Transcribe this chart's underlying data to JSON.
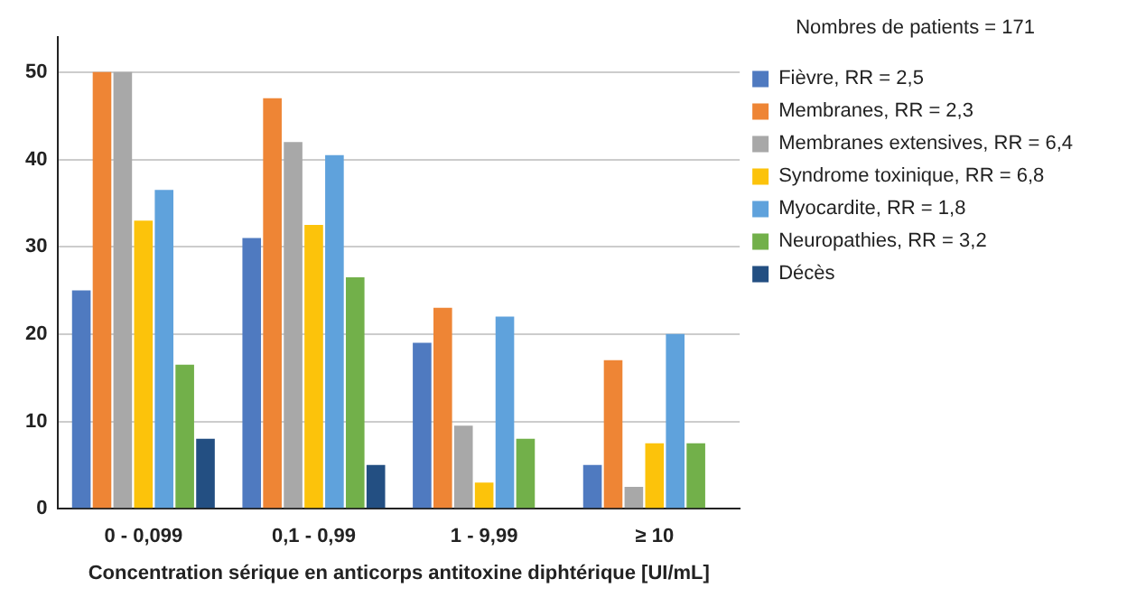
{
  "chart_data": {
    "type": "bar",
    "legend_title": "Nombres de patients = 171",
    "xlabel": "Concentration sérique en anticorps antitoxine diphtérique [UI/mL]",
    "categories": [
      "0 - 0,099",
      "0,1 - 0,99",
      "1 - 9,99",
      "≥ 10"
    ],
    "series": [
      {
        "name": "Fièvre, RR = 2,5",
        "color": "#4f7ac0",
        "values": [
          25,
          31,
          19,
          5
        ]
      },
      {
        "name": "Membranes, RR = 2,3",
        "color": "#ee8535",
        "values": [
          50,
          47,
          23,
          17
        ]
      },
      {
        "name": "Membranes extensives, RR = 6,4",
        "color": "#a8a8a8",
        "values": [
          50,
          42,
          9.5,
          2.5
        ]
      },
      {
        "name": "Syndrome toxinique, RR = 6,8",
        "color": "#fcc30b",
        "values": [
          33,
          32.5,
          3,
          7.5
        ]
      },
      {
        "name": "Myocardite, RR = 1,8",
        "color": "#5fa2dc",
        "values": [
          36.5,
          40.5,
          22,
          20
        ]
      },
      {
        "name": "Neuropathies, RR = 3,2",
        "color": "#72b04a",
        "values": [
          16.5,
          26.5,
          8,
          7.5
        ]
      },
      {
        "name": "Décès",
        "color": "#234f82",
        "values": [
          8,
          5,
          0,
          0
        ]
      }
    ],
    "ylim": [
      0,
      54
    ],
    "yticks": [
      0,
      10,
      20,
      30,
      40,
      50
    ],
    "grid": "y",
    "legend": "right"
  }
}
